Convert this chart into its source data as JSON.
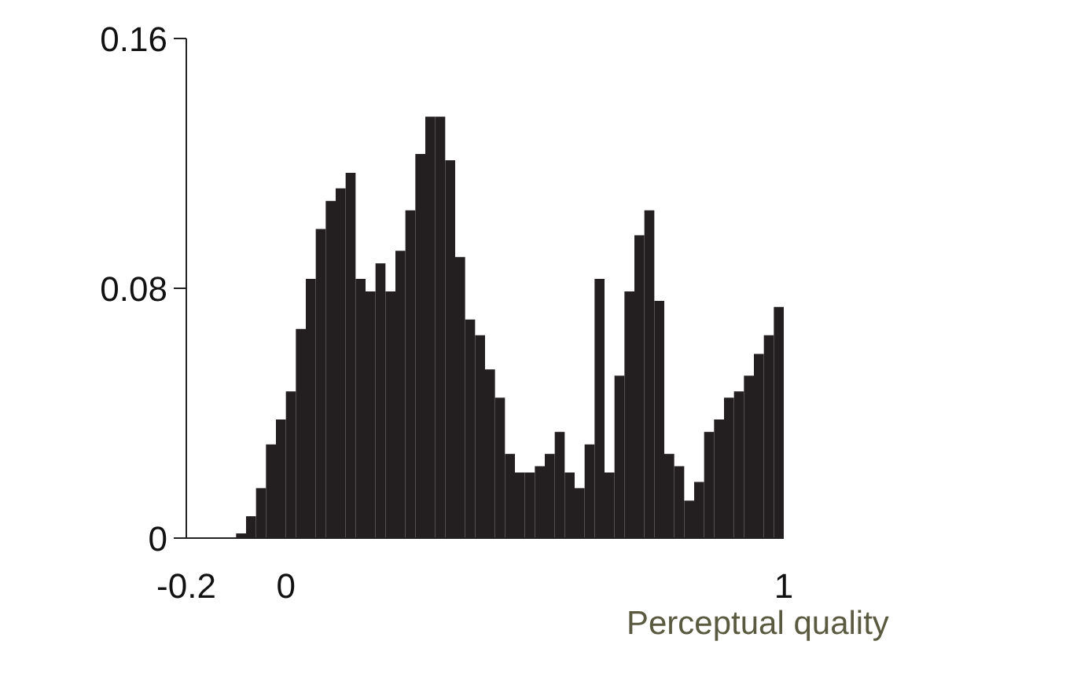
{
  "chart_data": {
    "type": "histogram",
    "xlabel": "Perceptual quality",
    "bins": [
      -0.1,
      -0.08,
      -0.06,
      -0.04,
      -0.02,
      0,
      0.02,
      0.04,
      0.06,
      0.08,
      0.1,
      0.12,
      0.14,
      0.16,
      0.18,
      0.2,
      0.22,
      0.24,
      0.26,
      0.28,
      0.3,
      0.32,
      0.34,
      0.36,
      0.38,
      0.4,
      0.42,
      0.44,
      0.46,
      0.48,
      0.5,
      0.52,
      0.54,
      0.56,
      0.58,
      0.6,
      0.62,
      0.64,
      0.66,
      0.68,
      0.7,
      0.72,
      0.74,
      0.76,
      0.78,
      0.8,
      0.82,
      0.84,
      0.86,
      0.88,
      0.9,
      0.92,
      0.94,
      0.96,
      0.98,
      1.0
    ],
    "values": [
      0.0015,
      0.007,
      0.016,
      0.03,
      0.038,
      0.047,
      0.067,
      0.083,
      0.099,
      0.108,
      0.112,
      0.117,
      0.083,
      0.079,
      0.088,
      0.079,
      0.092,
      0.105,
      0.123,
      0.135,
      0.135,
      0.121,
      0.09,
      0.07,
      0.065,
      0.054,
      0.045,
      0.027,
      0.021,
      0.021,
      0.023,
      0.027,
      0.034,
      0.021,
      0.016,
      0.03,
      0.083,
      0.021,
      0.052,
      0.079,
      0.097,
      0.105,
      0.076,
      0.027,
      0.023,
      0.012,
      0.018,
      0.034,
      0.038,
      0.045,
      0.047,
      0.052,
      0.059,
      0.065,
      0.074
    ],
    "color": "#231f20",
    "xlim": [
      -0.2,
      1
    ],
    "ylim": [
      0,
      0.16
    ],
    "xticks": [
      -0.2,
      0,
      1
    ],
    "yticks": [
      0,
      0.08,
      0.16
    ],
    "grid": false
  }
}
